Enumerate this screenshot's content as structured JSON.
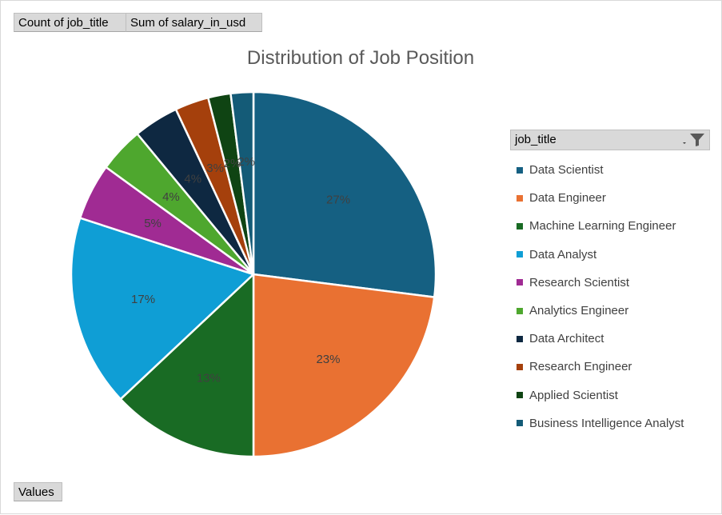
{
  "field_buttons": {
    "count": "Count of job_title",
    "sum": "Sum of salary_in_usd",
    "values": "Values"
  },
  "legend": {
    "header": "job_title",
    "filter_icon": "funnel-filter-icon"
  },
  "chart_data": {
    "type": "pie",
    "title": "Distribution of Job Position",
    "legend_position": "right",
    "categories": [
      "Data Scientist",
      "Data Engineer",
      "Machine Learning Engineer",
      "Data Analyst",
      "Research Scientist",
      "Analytics Engineer",
      "Data Architect",
      "Research Engineer",
      "Applied Scientist",
      "Business Intelligence Analyst"
    ],
    "values": [
      27,
      23,
      13,
      17,
      5,
      4,
      4,
      3,
      2,
      2
    ],
    "data_labels": [
      "27%",
      "23%",
      "13%",
      "17%",
      "5%",
      "4%",
      "4%",
      "3%",
      "2%",
      "2%"
    ],
    "colors": [
      "#156082",
      "#e97132",
      "#196b24",
      "#0f9ed5",
      "#a02b93",
      "#4ea72e",
      "#0e2841",
      "#a5400c",
      "#0f4413",
      "#145b77"
    ]
  }
}
